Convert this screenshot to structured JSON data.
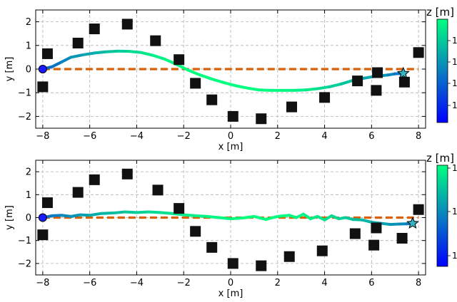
{
  "chart_data": [
    {
      "type": "scatter",
      "xlabel": "x [m]",
      "ylabel": "y [m]",
      "xlim": [
        -8.3,
        8.3
      ],
      "ylim": [
        -2.5,
        2.5
      ],
      "xticks": [
        -8,
        -6,
        -4,
        -2,
        0,
        2,
        4,
        6,
        8
      ],
      "yticks": [
        -2,
        -1,
        0,
        1,
        2
      ],
      "xtick_labels": [
        "−8",
        "−6",
        "−4",
        "−2",
        "0",
        "2",
        "4",
        "6",
        "8"
      ],
      "ytick_labels": [
        "−2",
        "−1",
        "0",
        "1",
        "2"
      ],
      "grid": true,
      "colorbar": {
        "label": "z [m]",
        "tick_labels": [
          "1",
          "1",
          "1",
          "1"
        ]
      },
      "obstacles": [
        {
          "x": -8.0,
          "y": -0.75
        },
        {
          "x": -7.8,
          "y": 0.65
        },
        {
          "x": -6.5,
          "y": 1.1
        },
        {
          "x": -5.8,
          "y": 1.7
        },
        {
          "x": -4.4,
          "y": 1.9
        },
        {
          "x": -3.2,
          "y": 1.2
        },
        {
          "x": -2.2,
          "y": 0.4
        },
        {
          "x": -1.5,
          "y": -0.6
        },
        {
          "x": -0.8,
          "y": -1.3
        },
        {
          "x": 0.1,
          "y": -2.0
        },
        {
          "x": 1.3,
          "y": -2.1
        },
        {
          "x": 2.6,
          "y": -1.6
        },
        {
          "x": 4.0,
          "y": -1.2
        },
        {
          "x": 5.4,
          "y": -0.5
        },
        {
          "x": 6.2,
          "y": -0.9
        },
        {
          "x": 6.25,
          "y": -0.15
        },
        {
          "x": 7.4,
          "y": -0.55
        },
        {
          "x": 8.0,
          "y": 0.7
        }
      ],
      "reference": {
        "x": [
          -8.0,
          8.0
        ],
        "y": [
          0,
          0
        ],
        "color": "#d95f02"
      },
      "trajectory": {
        "x": [
          -8.0,
          -7.6,
          -7.2,
          -6.8,
          -6.3,
          -5.8,
          -5.3,
          -4.8,
          -4.3,
          -3.8,
          -3.3,
          -2.8,
          -2.3,
          -1.8,
          -1.3,
          -0.8,
          -0.3,
          0.2,
          0.7,
          1.2,
          1.7,
          2.2,
          2.7,
          3.2,
          3.7,
          4.2,
          4.7,
          5.2,
          5.7,
          6.2,
          6.7,
          7.0,
          7.35
        ],
        "y": [
          0.0,
          0.1,
          0.3,
          0.5,
          0.6,
          0.68,
          0.73,
          0.76,
          0.75,
          0.7,
          0.58,
          0.42,
          0.2,
          -0.05,
          -0.25,
          -0.42,
          -0.57,
          -0.7,
          -0.8,
          -0.88,
          -0.9,
          -0.9,
          -0.9,
          -0.88,
          -0.83,
          -0.75,
          -0.63,
          -0.48,
          -0.38,
          -0.3,
          -0.25,
          -0.2,
          -0.18
        ]
      },
      "start": {
        "x": -8.0,
        "y": 0.0
      },
      "goal": {
        "x": 7.35,
        "y": -0.18
      }
    },
    {
      "type": "scatter",
      "xlabel": "x [m]",
      "ylabel": "y [m]",
      "xlim": [
        -8.3,
        8.3
      ],
      "ylim": [
        -2.5,
        2.5
      ],
      "xticks": [
        -8,
        -6,
        -4,
        -2,
        0,
        2,
        4,
        6,
        8
      ],
      "yticks": [
        -2,
        -1,
        0,
        1,
        2
      ],
      "xtick_labels": [
        "−8",
        "−6",
        "−4",
        "−2",
        "0",
        "2",
        "4",
        "6",
        "8"
      ],
      "ytick_labels": [
        "−2",
        "−1",
        "0",
        "1",
        "2"
      ],
      "grid": true,
      "colorbar": {
        "label": "z [m]",
        "tick_labels": [
          "1",
          "1",
          "1"
        ]
      },
      "obstacles": [
        {
          "x": -8.0,
          "y": -0.75
        },
        {
          "x": -7.8,
          "y": 0.65
        },
        {
          "x": -6.5,
          "y": 1.1
        },
        {
          "x": -5.8,
          "y": 1.65
        },
        {
          "x": -4.4,
          "y": 1.9
        },
        {
          "x": -3.1,
          "y": 1.2
        },
        {
          "x": -2.2,
          "y": 0.4
        },
        {
          "x": -1.5,
          "y": -0.6
        },
        {
          "x": -0.8,
          "y": -1.3
        },
        {
          "x": 0.1,
          "y": -2.0
        },
        {
          "x": 1.3,
          "y": -2.1
        },
        {
          "x": 2.5,
          "y": -1.7
        },
        {
          "x": 3.9,
          "y": -1.45
        },
        {
          "x": 5.3,
          "y": -0.7
        },
        {
          "x": 6.1,
          "y": -1.2
        },
        {
          "x": 6.2,
          "y": -0.45
        },
        {
          "x": 7.3,
          "y": -0.9
        },
        {
          "x": 8.0,
          "y": 0.35
        }
      ],
      "reference": {
        "x": [
          -8.0,
          8.0
        ],
        "y": [
          0,
          0
        ],
        "color": "#d95f02"
      },
      "trajectory": {
        "x": [
          -8.0,
          -7.6,
          -7.2,
          -6.8,
          -6.4,
          -6.0,
          -5.5,
          -5.0,
          -4.5,
          -4.0,
          -3.5,
          -3.0,
          -2.5,
          -2.0,
          -1.5,
          -1.0,
          -0.5,
          0.0,
          0.5,
          1.0,
          1.5,
          2.0,
          2.5,
          2.8,
          3.1,
          3.4,
          3.7,
          4.0,
          4.3,
          4.6,
          4.9,
          5.2,
          5.6,
          6.0,
          6.4,
          6.8,
          7.2,
          7.5,
          7.75
        ],
        "y": [
          0.0,
          0.08,
          0.1,
          0.05,
          0.12,
          0.1,
          0.18,
          0.2,
          0.25,
          0.22,
          0.25,
          0.22,
          0.18,
          0.12,
          0.08,
          0.05,
          0.0,
          -0.05,
          -0.02,
          0.05,
          -0.08,
          0.05,
          0.1,
          0.0,
          0.15,
          -0.05,
          0.05,
          -0.1,
          0.08,
          -0.05,
          0.0,
          -0.08,
          -0.1,
          -0.2,
          -0.25,
          -0.3,
          -0.28,
          -0.27,
          -0.25
        ]
      },
      "start": {
        "x": -8.0,
        "y": 0.0
      },
      "goal": {
        "x": 7.75,
        "y": -0.25
      }
    }
  ],
  "colors": {
    "obstacle": "#111111",
    "reference": "#d95f02",
    "start": "#1a1aff",
    "goal": "#33b5c8",
    "cmap_low": "#0000ff",
    "cmap_high": "#00ff80",
    "grid": "#b0b0b0"
  }
}
